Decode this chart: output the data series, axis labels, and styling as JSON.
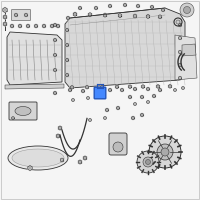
{
  "background_color": "#f5f5f5",
  "border_color": "#bbbbbb",
  "line_color": "#333333",
  "dark_color": "#444444",
  "mid_color": "#888888",
  "light_color": "#cccccc",
  "highlight_color": "#4488ff",
  "fig_width": 2.0,
  "fig_height": 2.0,
  "dpi": 100
}
